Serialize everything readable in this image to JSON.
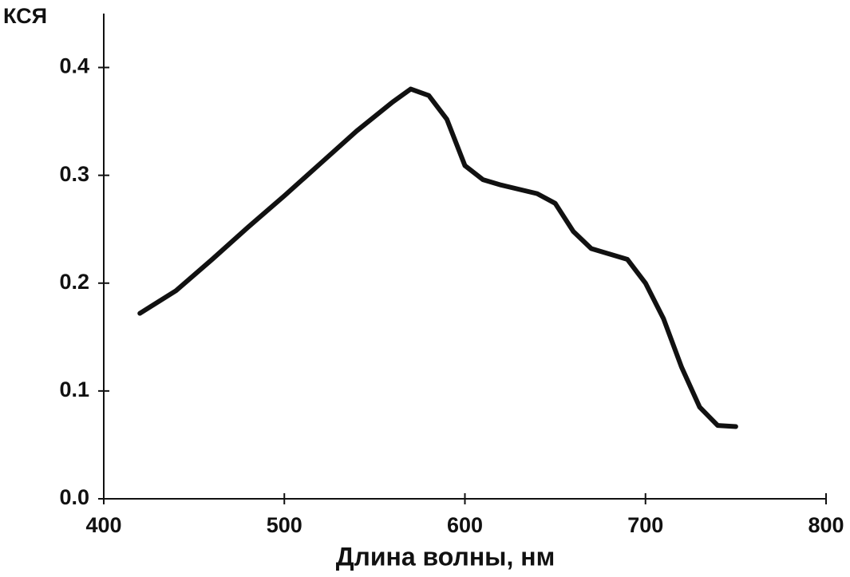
{
  "chart_data": {
    "type": "line",
    "x_label": "Длина волны, нм",
    "y_label": "КСЯ",
    "x": [
      420,
      440,
      460,
      480,
      500,
      520,
      540,
      560,
      570,
      580,
      590,
      600,
      610,
      620,
      640,
      650,
      660,
      670,
      680,
      690,
      700,
      710,
      720,
      730,
      740,
      750
    ],
    "series": [
      {
        "name": "КСЯ",
        "color": "#111111",
        "values": [
          0.172,
          0.193,
          0.222,
          0.252,
          0.281,
          0.311,
          0.341,
          0.368,
          0.38,
          0.374,
          0.352,
          0.309,
          0.296,
          0.291,
          0.283,
          0.274,
          0.248,
          0.232,
          0.227,
          0.222,
          0.2,
          0.167,
          0.122,
          0.085,
          0.068,
          0.067
        ]
      }
    ],
    "xlim": [
      400,
      800
    ],
    "xticks": [
      400,
      500,
      600,
      700,
      800
    ],
    "ylim": [
      0,
      0.45
    ],
    "yticks": [
      {
        "value": 0,
        "label": "0.0"
      },
      0.1,
      0.2,
      0.3,
      0.4
    ]
  }
}
